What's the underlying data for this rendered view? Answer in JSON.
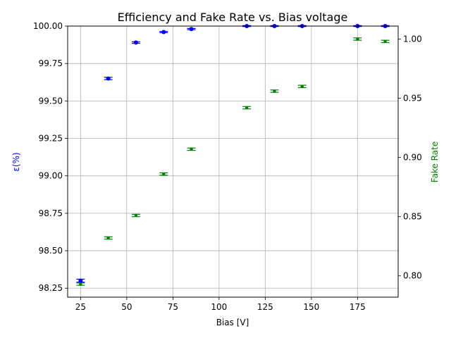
{
  "chart_data": {
    "type": "scatter",
    "title": "Efficiency and Fake Rate vs. Bias voltage",
    "xlabel": "Bias [V]",
    "ylabel_left": "ε(%)",
    "ylabel_right": "Fake Rate",
    "xlim": [
      18,
      197
    ],
    "ylim_left": [
      98.19,
      100.0
    ],
    "ylim_right": [
      0.782,
      1.011
    ],
    "xticks": [
      25,
      50,
      75,
      100,
      125,
      150,
      175
    ],
    "yticks_left": [
      98.25,
      98.5,
      98.75,
      99.0,
      99.25,
      99.5,
      99.75,
      100.0
    ],
    "yticks_right": [
      0.8,
      0.85,
      0.9,
      0.95,
      1.0
    ],
    "grid": true,
    "colors": {
      "efficiency": "#0000ff",
      "fake_rate": "#008000",
      "ylabel_left": "#0000ff",
      "ylabel_right": "#008000"
    },
    "series": [
      {
        "axis": "left",
        "color": "#0000ff",
        "x": [
          25,
          40,
          55,
          70,
          85,
          115,
          130,
          145,
          175,
          190
        ],
        "y": [
          98.3,
          99.65,
          99.89,
          99.96,
          99.98,
          100.0,
          100.0,
          100.0,
          100.0,
          100.0
        ],
        "yerr": [
          0.01,
          0.008,
          0.005,
          0.004,
          0.004,
          0.003,
          0.003,
          0.003,
          0.003,
          0.003
        ]
      },
      {
        "axis": "right",
        "color": "#008000",
        "x": [
          25,
          40,
          55,
          70,
          85,
          115,
          130,
          145,
          175,
          190
        ],
        "y": [
          0.793,
          0.832,
          0.851,
          0.886,
          0.907,
          0.942,
          0.956,
          0.96,
          1.0,
          0.998
        ],
        "yerr": [
          0.001,
          0.001,
          0.001,
          0.001,
          0.001,
          0.001,
          0.001,
          0.001,
          0.001,
          0.001
        ]
      }
    ]
  }
}
